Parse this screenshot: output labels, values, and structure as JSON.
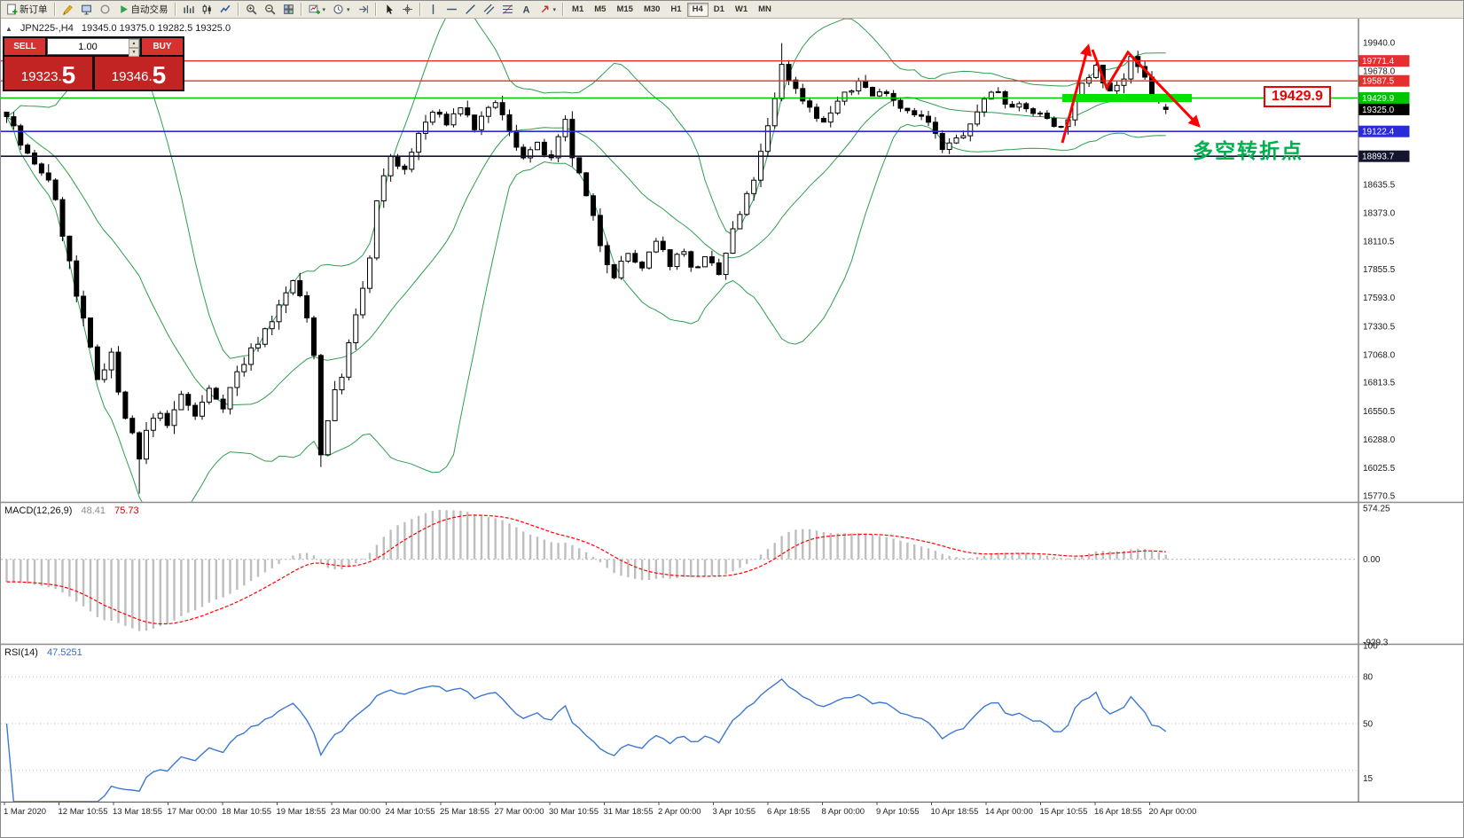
{
  "toolbar": {
    "groups": [
      {
        "items": [
          {
            "name": "new-order",
            "icon": "doc-plus",
            "label": "新订单"
          }
        ]
      },
      {
        "items": [
          {
            "name": "charts-toolbar",
            "icon": "brush"
          },
          {
            "name": "profiles",
            "icon": "monitor"
          },
          {
            "name": "expert-advisors",
            "icon": "circle"
          },
          {
            "name": "auto-trading",
            "icon": "play",
            "label": "自动交易"
          }
        ]
      },
      {
        "items": [
          {
            "name": "bar-chart",
            "icon": "bars"
          },
          {
            "name": "candlestick-chart",
            "icon": "candles"
          },
          {
            "name": "line-chart",
            "icon": "linechart"
          }
        ]
      },
      {
        "items": [
          {
            "name": "zoom-in",
            "icon": "zoom-in"
          },
          {
            "name": "zoom-out",
            "icon": "zoom-out"
          },
          {
            "name": "tile-windows",
            "icon": "grid"
          }
        ]
      },
      {
        "items": [
          {
            "name": "new-chart",
            "icon": "chart-plus",
            "dropdown": true
          },
          {
            "name": "period-selector",
            "icon": "clock",
            "dropdown": true
          },
          {
            "name": "chart-shift",
            "icon": "shift"
          }
        ]
      },
      {
        "items": [
          {
            "name": "cursor",
            "icon": "cursor"
          },
          {
            "name": "crosshair",
            "icon": "crosshair"
          }
        ]
      },
      {
        "items": [
          {
            "name": "vertical-line",
            "icon": "vline"
          },
          {
            "name": "horizontal-line",
            "icon": "hline"
          },
          {
            "name": "trendline",
            "icon": "trendline"
          },
          {
            "name": "equidistant-channel",
            "icon": "channel"
          },
          {
            "name": "fibonacci-retracement",
            "icon": "fibo"
          },
          {
            "name": "text-label",
            "icon": "text"
          },
          {
            "name": "arrow-tools",
            "icon": "arrows",
            "dropdown": true
          }
        ]
      }
    ],
    "timeframes": [
      "M1",
      "M5",
      "M15",
      "M30",
      "H1",
      "H4",
      "D1",
      "W1",
      "MN"
    ],
    "active_timeframe": "H4"
  },
  "symbol_header": {
    "collapse_icon": "▲",
    "symbol": "JPN225-,H4",
    "ohlc": "19345.0 19375.0 19282.5 19325.0"
  },
  "trade_panel": {
    "sell_label": "SELL",
    "buy_label": "BUY",
    "volume": "1.00",
    "sell_price": "19323.5",
    "buy_price": "19346.5"
  },
  "chart_data": {
    "type": "candlestick",
    "symbol": "JPN225-",
    "timeframe": "H4",
    "price_range": [
      15770.5,
      19940.0
    ],
    "price_axis_ticks": [
      "19940.0",
      "19678.0",
      "18635.5",
      "18373.0",
      "18110.5",
      "17855.5",
      "17593.0",
      "17330.5",
      "17068.0",
      "16813.5",
      "16550.5",
      "16288.0",
      "16025.5",
      "15770.5"
    ],
    "levels": [
      {
        "price": 19771.4,
        "label": "19771.4",
        "color": "#e62e2e",
        "line_width": 1.4
      },
      {
        "price": 19587.5,
        "label": "19587.5",
        "color": "#e62e2e",
        "line_width": 1.4
      },
      {
        "price": 19429.9,
        "label": "19429.9",
        "color": "#00c400",
        "line_width": 1.4
      },
      {
        "price": 19325.0,
        "label": "19325.0",
        "color": "#000000",
        "line_width": 0
      },
      {
        "price": 19122.4,
        "label": "19122.4",
        "color": "#2a2ad8",
        "line_width": 1.6
      },
      {
        "price": 18893.7,
        "label": "18893.7",
        "color": "#14142e",
        "line_width": 1.6
      }
    ],
    "bollinger": {
      "period": 20,
      "deviation": 2,
      "color": "#2e9e4f"
    },
    "candle_count": 167,
    "close_anchors": [
      [
        0,
        19300
      ],
      [
        2,
        19000
      ],
      [
        4,
        18800
      ],
      [
        6,
        18700
      ],
      [
        8,
        18200
      ],
      [
        10,
        17600
      ],
      [
        12,
        17100
      ],
      [
        13,
        16850
      ],
      [
        15,
        17100
      ],
      [
        16,
        16700
      ],
      [
        17,
        16500
      ],
      [
        19,
        16100
      ],
      [
        20,
        16350
      ],
      [
        22,
        16550
      ],
      [
        23,
        16400
      ],
      [
        25,
        16700
      ],
      [
        27,
        16500
      ],
      [
        29,
        16750
      ],
      [
        31,
        16600
      ],
      [
        33,
        16900
      ],
      [
        35,
        17100
      ],
      [
        37,
        17300
      ],
      [
        39,
        17500
      ],
      [
        41,
        17750
      ],
      [
        43,
        17400
      ],
      [
        44,
        17100
      ],
      [
        45,
        16150
      ],
      [
        46,
        16500
      ],
      [
        48,
        16900
      ],
      [
        50,
        17400
      ],
      [
        52,
        17950
      ],
      [
        53,
        18450
      ],
      [
        55,
        18900
      ],
      [
        57,
        18750
      ],
      [
        59,
        19100
      ],
      [
        61,
        19300
      ],
      [
        63,
        19200
      ],
      [
        65,
        19350
      ],
      [
        67,
        19150
      ],
      [
        69,
        19300
      ],
      [
        70,
        19400
      ],
      [
        72,
        19100
      ],
      [
        74,
        18900
      ],
      [
        76,
        19000
      ],
      [
        78,
        18850
      ],
      [
        80,
        19200
      ],
      [
        81,
        18900
      ],
      [
        83,
        18500
      ],
      [
        85,
        18100
      ],
      [
        87,
        17800
      ],
      [
        89,
        18000
      ],
      [
        91,
        17850
      ],
      [
        93,
        18100
      ],
      [
        95,
        17900
      ],
      [
        97,
        18050
      ],
      [
        98,
        17850
      ],
      [
        100,
        17950
      ],
      [
        102,
        17800
      ],
      [
        104,
        18200
      ],
      [
        106,
        18500
      ],
      [
        108,
        18900
      ],
      [
        110,
        19400
      ],
      [
        111,
        19750
      ],
      [
        113,
        19500
      ],
      [
        115,
        19350
      ],
      [
        117,
        19200
      ],
      [
        119,
        19400
      ],
      [
        121,
        19500
      ],
      [
        122,
        19600
      ],
      [
        124,
        19450
      ],
      [
        126,
        19500
      ],
      [
        128,
        19350
      ],
      [
        130,
        19300
      ],
      [
        132,
        19200
      ],
      [
        134,
        18950
      ],
      [
        136,
        19050
      ],
      [
        138,
        19150
      ],
      [
        140,
        19450
      ],
      [
        142,
        19500
      ],
      [
        143,
        19400
      ],
      [
        145,
        19350
      ],
      [
        147,
        19300
      ],
      [
        149,
        19250
      ],
      [
        151,
        19150
      ],
      [
        153,
        19400
      ],
      [
        155,
        19650
      ],
      [
        156,
        19750
      ],
      [
        158,
        19500
      ],
      [
        160,
        19600
      ],
      [
        161,
        19780
      ],
      [
        163,
        19600
      ],
      [
        164,
        19450
      ],
      [
        166,
        19325
      ]
    ],
    "ohlc_last": {
      "open": 19345.0,
      "high": 19375.0,
      "low": 19282.5,
      "close": 19325.0
    },
    "extremes": {
      "low_wick_index": 19,
      "low_wick_price": 15790,
      "crash_low_index": 45,
      "crash_low_price": 16035,
      "high_wick_index": 111,
      "high_wick_price": 19935
    },
    "macd": {
      "title": "MACD(12,26,9)",
      "value_main": "48.41",
      "value_signal": "75.73",
      "axis": [
        "574.25",
        "0.00",
        "-929.3"
      ],
      "range": [
        -929.3,
        574.25
      ],
      "histogram_color": "#bebebe",
      "signal_color": "#ff0000"
    },
    "rsi": {
      "title": "RSI(14)",
      "value": "47.5251",
      "axis": [
        {
          "label": "100",
          "value": 100
        },
        {
          "label": "80",
          "value": 80
        },
        {
          "label": "50",
          "value": 50
        },
        {
          "label": "15",
          "value": 15
        }
      ],
      "levels": [
        80,
        50,
        20
      ],
      "color": "#3c78d2"
    },
    "time_axis": [
      "1 Mar 2020",
      "12 Mar 10:55",
      "13 Mar 18:55",
      "17 Mar 00:00",
      "18 Mar 10:55",
      "19 Mar 18:55",
      "23 Mar 00:00",
      "24 Mar 10:55",
      "25 Mar 18:55",
      "27 Mar 00:00",
      "30 Mar 10:55",
      "31 Mar 18:55",
      "2 Apr 00:00",
      "3 Apr 10:55",
      "6 Apr 18:55",
      "8 Apr 00:00",
      "9 Apr 10:55",
      "10 Apr 18:55",
      "14 Apr 00:00",
      "15 Apr 10:55",
      "16 Apr 18:55",
      "20 Apr 00:00"
    ],
    "annotations": {
      "callout_price": "19429.9",
      "note_text": "多空转折点",
      "note_color": "#00b050",
      "arrow_color": "#ff0000",
      "highlight_bar": {
        "price": 19429.9,
        "color": "#00e400"
      }
    }
  }
}
